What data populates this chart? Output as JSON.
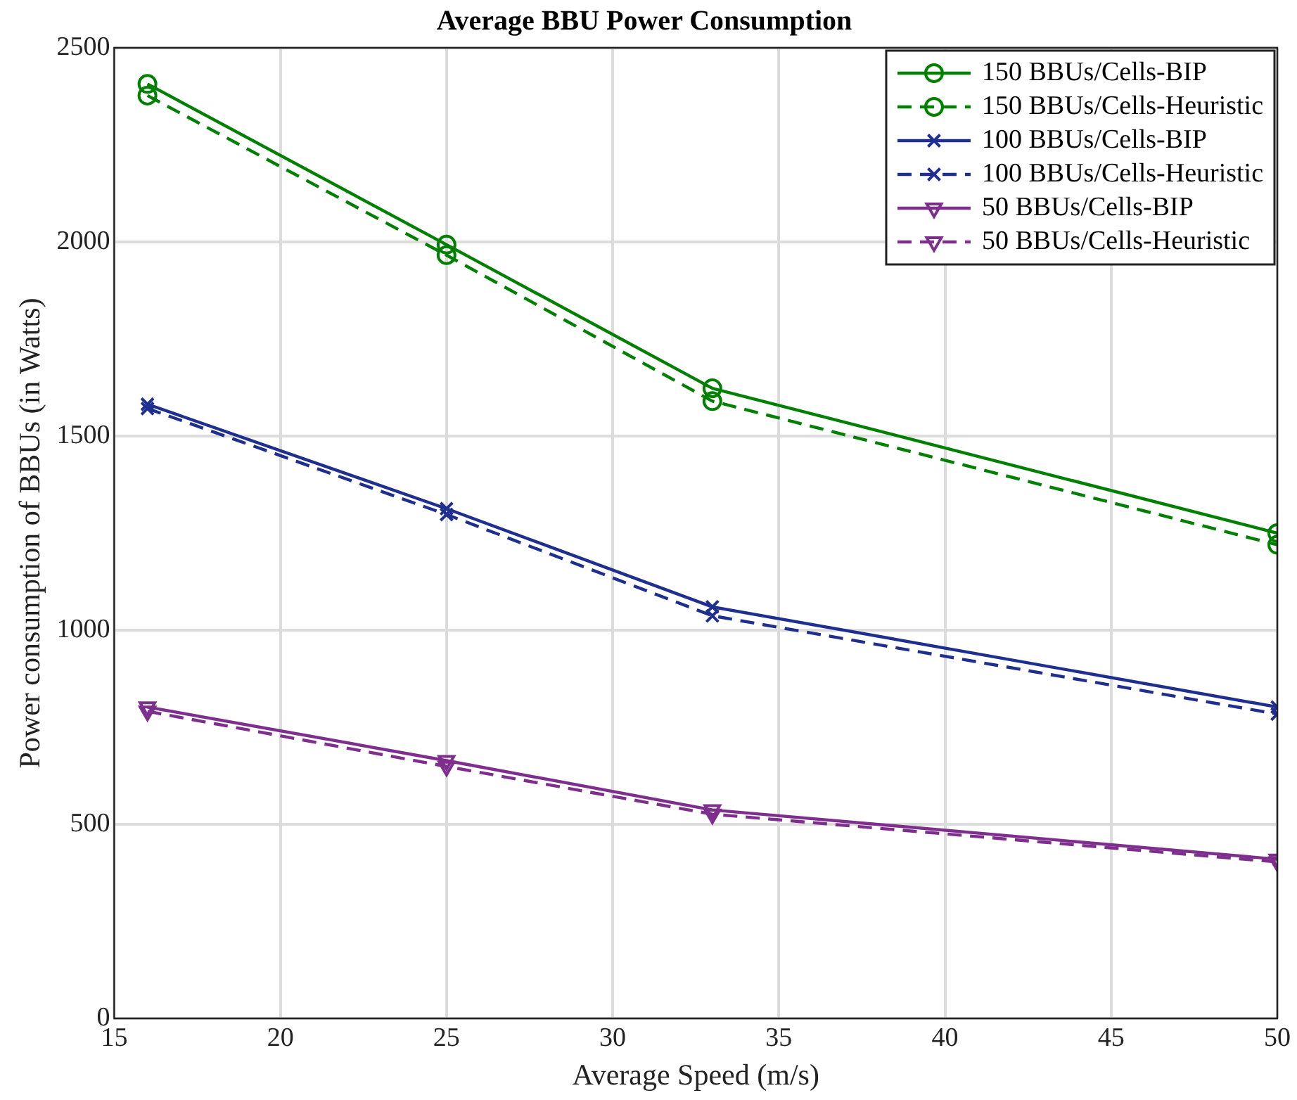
{
  "chart_data": {
    "type": "line",
    "title": "Average BBU Power Consumption",
    "xlabel": "Average Speed (m/s)",
    "ylabel": "Power consumption of BBUs (in Watts)",
    "x": [
      16,
      25,
      33,
      50
    ],
    "xlim": [
      15,
      50
    ],
    "xticks": [
      15,
      20,
      25,
      30,
      35,
      40,
      45,
      50
    ],
    "ylim": [
      0,
      2500
    ],
    "yticks": [
      0,
      500,
      1000,
      1500,
      2000,
      2500
    ],
    "grid": true,
    "legend": "top right",
    "series": [
      {
        "name": "150 BBUs/Cells-BIP",
        "color": "#008000",
        "marker": "circle",
        "line_style": "solid",
        "values": [
          2407,
          1993,
          1623,
          1250
        ]
      },
      {
        "name": "150 BBUs/Cells-Heuristic",
        "color": "#008000",
        "marker": "circle",
        "line_style": "dashed",
        "values": [
          2377,
          1966,
          1590,
          1220
        ]
      },
      {
        "name": "100 BBUs/Cells-BIP",
        "color": "#1f2f8f",
        "marker": "cross",
        "line_style": "solid",
        "values": [
          1582,
          1313,
          1060,
          802
        ]
      },
      {
        "name": "100 BBUs/Cells-Heuristic",
        "color": "#1f2f8f",
        "marker": "cross",
        "line_style": "dashed",
        "values": [
          1571,
          1298,
          1037,
          784
        ]
      },
      {
        "name": "50 BBUs/Cells-BIP",
        "color": "#7e2f8e",
        "marker": "triangle",
        "line_style": "solid",
        "values": [
          802,
          664,
          537,
          410
        ]
      },
      {
        "name": "50 BBUs/Cells-Heuristic",
        "color": "#7e2f8e",
        "marker": "triangle",
        "line_style": "dashed",
        "values": [
          791,
          649,
          526,
          403
        ]
      }
    ]
  }
}
